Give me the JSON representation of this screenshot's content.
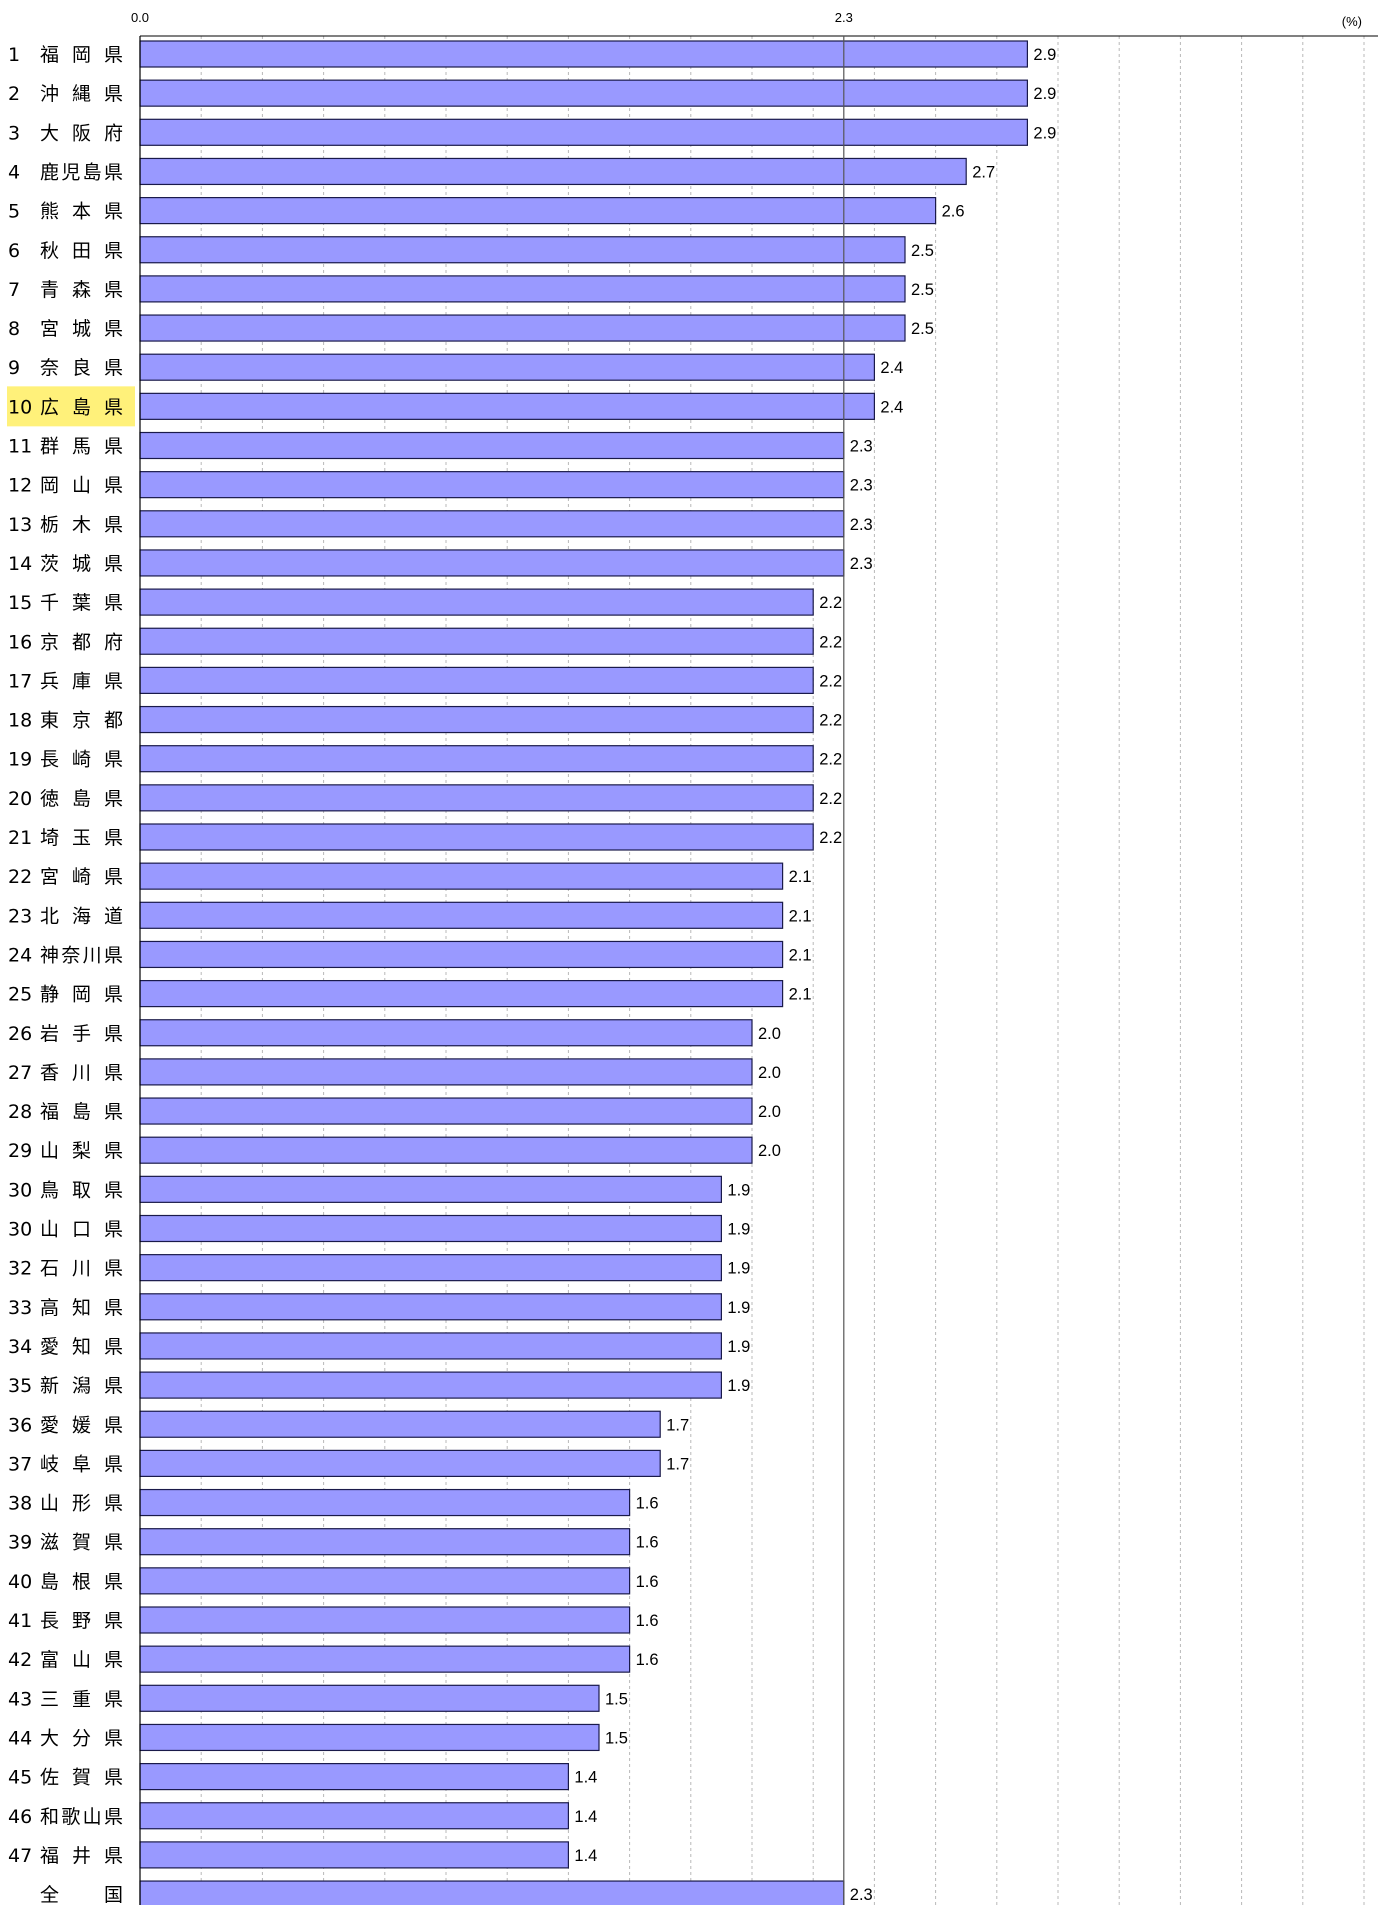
{
  "chart_data": {
    "type": "bar",
    "orientation": "horizontal",
    "unit_label": "(%)",
    "axis": {
      "min": 0,
      "max": 4.0,
      "ticks_labeled": [
        "0.0",
        "2.3"
      ],
      "grid_step": 0.2
    },
    "reference_line": {
      "value": 2.3,
      "label": "2.3"
    },
    "highlight_index": 9,
    "colors": {
      "bar": "#9999ff",
      "bar_stroke": "#1a1a4a",
      "highlight": "#fff17a",
      "grid": "#b8b8b8",
      "reference": "#555555"
    },
    "rows": [
      {
        "rank": "1",
        "name": "福 岡 県",
        "value": 2.9,
        "label": "2.9"
      },
      {
        "rank": "2",
        "name": "沖 縄 県",
        "value": 2.9,
        "label": "2.9"
      },
      {
        "rank": "3",
        "name": "大 阪 府",
        "value": 2.9,
        "label": "2.9"
      },
      {
        "rank": "4",
        "name": "鹿児島県",
        "value": 2.7,
        "label": "2.7"
      },
      {
        "rank": "5",
        "name": "熊 本 県",
        "value": 2.6,
        "label": "2.6"
      },
      {
        "rank": "6",
        "name": "秋 田 県",
        "value": 2.5,
        "label": "2.5"
      },
      {
        "rank": "7",
        "name": "青 森 県",
        "value": 2.5,
        "label": "2.5"
      },
      {
        "rank": "8",
        "name": "宮 城 県",
        "value": 2.5,
        "label": "2.5"
      },
      {
        "rank": "9",
        "name": "奈 良 県",
        "value": 2.4,
        "label": "2.4"
      },
      {
        "rank": "10",
        "name": "広 島 県",
        "value": 2.4,
        "label": "2.4"
      },
      {
        "rank": "11",
        "name": "群 馬 県",
        "value": 2.3,
        "label": "2.3"
      },
      {
        "rank": "12",
        "name": "岡 山 県",
        "value": 2.3,
        "label": "2.3"
      },
      {
        "rank": "13",
        "name": "栃 木 県",
        "value": 2.3,
        "label": "2.3"
      },
      {
        "rank": "14",
        "name": "茨 城 県",
        "value": 2.3,
        "label": "2.3"
      },
      {
        "rank": "15",
        "name": "千 葉 県",
        "value": 2.2,
        "label": "2.2"
      },
      {
        "rank": "16",
        "name": "京 都 府",
        "value": 2.2,
        "label": "2.2"
      },
      {
        "rank": "17",
        "name": "兵 庫 県",
        "value": 2.2,
        "label": "2.2"
      },
      {
        "rank": "18",
        "name": "東 京 都",
        "value": 2.2,
        "label": "2.2"
      },
      {
        "rank": "19",
        "name": "長 崎 県",
        "value": 2.2,
        "label": "2.2"
      },
      {
        "rank": "20",
        "name": "徳 島 県",
        "value": 2.2,
        "label": "2.2"
      },
      {
        "rank": "21",
        "name": "埼 玉 県",
        "value": 2.2,
        "label": "2.2"
      },
      {
        "rank": "22",
        "name": "宮 崎 県",
        "value": 2.1,
        "label": "2.1"
      },
      {
        "rank": "23",
        "name": "北 海 道",
        "value": 2.1,
        "label": "2.1"
      },
      {
        "rank": "24",
        "name": "神奈川県",
        "value": 2.1,
        "label": "2.1"
      },
      {
        "rank": "25",
        "name": "静 岡 県",
        "value": 2.1,
        "label": "2.1"
      },
      {
        "rank": "26",
        "name": "岩 手 県",
        "value": 2.0,
        "label": "2.0"
      },
      {
        "rank": "27",
        "name": "香 川 県",
        "value": 2.0,
        "label": "2.0"
      },
      {
        "rank": "28",
        "name": "福 島 県",
        "value": 2.0,
        "label": "2.0"
      },
      {
        "rank": "29",
        "name": "山 梨 県",
        "value": 2.0,
        "label": "2.0"
      },
      {
        "rank": "30",
        "name": "鳥 取 県",
        "value": 1.9,
        "label": "1.9"
      },
      {
        "rank": "30",
        "name": "山 口 県",
        "value": 1.9,
        "label": "1.9"
      },
      {
        "rank": "32",
        "name": "石 川 県",
        "value": 1.9,
        "label": "1.9"
      },
      {
        "rank": "33",
        "name": "高 知 県",
        "value": 1.9,
        "label": "1.9"
      },
      {
        "rank": "34",
        "name": "愛 知 県",
        "value": 1.9,
        "label": "1.9"
      },
      {
        "rank": "35",
        "name": "新 潟 県",
        "value": 1.9,
        "label": "1.9"
      },
      {
        "rank": "36",
        "name": "愛 媛 県",
        "value": 1.7,
        "label": "1.7"
      },
      {
        "rank": "37",
        "name": "岐 阜 県",
        "value": 1.7,
        "label": "1.7"
      },
      {
        "rank": "38",
        "name": "山 形 県",
        "value": 1.6,
        "label": "1.6"
      },
      {
        "rank": "39",
        "name": "滋 賀 県",
        "value": 1.6,
        "label": "1.6"
      },
      {
        "rank": "40",
        "name": "島 根 県",
        "value": 1.6,
        "label": "1.6"
      },
      {
        "rank": "41",
        "name": "長 野 県",
        "value": 1.6,
        "label": "1.6"
      },
      {
        "rank": "42",
        "name": "富 山 県",
        "value": 1.6,
        "label": "1.6"
      },
      {
        "rank": "43",
        "name": "三 重 県",
        "value": 1.5,
        "label": "1.5"
      },
      {
        "rank": "44",
        "name": "大 分 県",
        "value": 1.5,
        "label": "1.5"
      },
      {
        "rank": "45",
        "name": "佐 賀 県",
        "value": 1.4,
        "label": "1.4"
      },
      {
        "rank": "46",
        "name": "和歌山県",
        "value": 1.4,
        "label": "1.4"
      },
      {
        "rank": "47",
        "name": "福 井 県",
        "value": 1.4,
        "label": "1.4"
      },
      {
        "rank": "",
        "name": "全　　国",
        "value": 2.3,
        "label": "2.3"
      }
    ]
  }
}
